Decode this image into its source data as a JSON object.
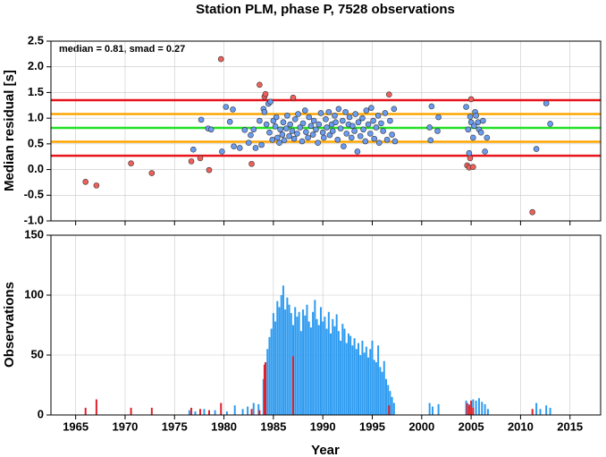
{
  "chart_data": [
    {
      "type": "scatter",
      "title": "Station PLM, phase P, 7528 observations",
      "y_label": "Median residual [s]",
      "annotation": "median = 0.81, smad = 0.27",
      "xlim": [
        1962.5,
        2018.1
      ],
      "xticks": [
        1965,
        1970,
        1975,
        1980,
        1985,
        1990,
        1995,
        2000,
        2005,
        2010,
        2015
      ],
      "ylim": [
        -1.0,
        2.5
      ],
      "yticks": [
        {
          "value": -1.0,
          "label": "-1.0"
        },
        -0.5,
        {
          "value": 0.0,
          "label": "0.0"
        },
        0.5,
        {
          "value": 1.0,
          "label": "1.0"
        },
        1.5,
        {
          "value": 2.0,
          "label": "2.0"
        },
        2.5
      ],
      "grid": true,
      "hlines": [
        {
          "value": 1.35,
          "color": "#e8141c"
        },
        {
          "value": 1.08,
          "color": "#ffa500"
        },
        {
          "value": 0.81,
          "color": "#22e022"
        },
        {
          "value": 0.54,
          "color": "#ffa500"
        },
        {
          "value": 0.27,
          "color": "#e8141c"
        }
      ],
      "series": [
        {
          "color": "#6b9cf0",
          "x": [
            1976.9,
            1977.7,
            1978.4,
            1978.7,
            1979.8,
            1980.2,
            1980.6,
            1980.9,
            1981.0,
            1981.6,
            1982.1,
            1982.5,
            1982.7,
            1983.0,
            1983.2,
            1983.6,
            1983.8,
            1984.0,
            1984.1,
            1984.3,
            1984.5,
            1984.6,
            1984.7,
            1984.9,
            1985.0,
            1985.2,
            1985.3,
            1985.4,
            1985.6,
            1985.7,
            1985.9,
            1986.0,
            1986.1,
            1986.3,
            1986.4,
            1986.6,
            1986.7,
            1986.9,
            1987.1,
            1987.2,
            1987.4,
            1987.5,
            1987.7,
            1987.9,
            1988.0,
            1988.2,
            1988.3,
            1988.5,
            1988.6,
            1988.8,
            1989.0,
            1989.1,
            1989.3,
            1989.5,
            1989.6,
            1989.8,
            1990.0,
            1990.1,
            1990.3,
            1990.4,
            1990.6,
            1990.7,
            1990.9,
            1991.0,
            1991.2,
            1991.3,
            1991.5,
            1991.6,
            1991.8,
            1992.0,
            1992.1,
            1992.3,
            1992.4,
            1992.6,
            1992.7,
            1992.9,
            1993.0,
            1993.2,
            1993.3,
            1993.5,
            1993.6,
            1993.8,
            1994.0,
            1994.1,
            1994.3,
            1994.4,
            1994.6,
            1994.8,
            1994.9,
            1995.1,
            1995.2,
            1995.4,
            1995.6,
            1995.7,
            1995.9,
            1996.1,
            1996.3,
            1996.5,
            1996.8,
            1997.0,
            1997.2,
            1997.3,
            2000.8,
            2000.9,
            2001.0,
            2001.6,
            2001.7,
            2004.5,
            2004.7,
            2004.8,
            2004.9,
            2005.0,
            2005.2,
            2005.3,
            2005.4,
            2005.5,
            2005.7,
            2005.8,
            2006.0,
            2006.2,
            2006.4,
            2006.6,
            2011.6,
            2012.6,
            2013.0
          ],
          "values": [
            0.39,
            0.97,
            0.8,
            0.78,
            0.35,
            1.22,
            0.93,
            1.17,
            0.45,
            0.42,
            0.77,
            0.52,
            0.67,
            0.78,
            0.42,
            0.95,
            0.48,
            1.18,
            1.12,
            0.88,
            1.28,
            0.72,
            1.32,
            0.58,
            0.95,
            0.84,
            1.02,
            0.62,
            0.52,
            0.78,
            0.68,
            0.92,
            0.57,
            0.8,
            1.05,
            0.65,
            0.88,
            0.75,
            0.6,
            0.98,
            0.7,
            1.08,
            0.82,
            0.55,
            0.9,
            1.15,
            0.73,
            0.62,
            1.02,
            0.85,
            0.68,
            0.95,
            0.78,
            0.52,
            0.88,
            1.1,
            0.72,
            0.62,
            0.98,
            0.82,
            1.12,
            0.67,
            0.88,
            0.75,
            1.05,
            0.92,
            0.58,
            1.18,
            0.8,
            0.95,
            0.45,
            1.12,
            0.7,
            0.88,
            1.02,
            0.62,
            0.85,
            0.75,
            1.08,
            0.35,
            0.92,
            0.65,
            1.0,
            0.78,
            0.55,
            1.15,
            0.88,
            0.7,
            1.2,
            0.95,
            0.6,
            0.82,
            1.05,
            0.52,
            0.9,
            0.75,
            1.1,
            0.58,
            0.95,
            0.68,
            1.18,
            0.55,
            0.82,
            0.57,
            1.23,
            0.75,
            1.02,
            1.22,
            0.78,
            0.32,
            1.03,
            0.92,
            0.62,
            0.85,
            1.12,
            1.05,
            0.92,
            0.78,
            0.72,
            0.95,
            0.35,
            0.62,
            0.4,
            1.29,
            0.89
          ]
        },
        {
          "color": "#f0605a",
          "x": [
            1966.0,
            1967.1,
            1970.6,
            1972.7,
            1976.7,
            1977.6,
            1978.5,
            1979.7,
            1982.8,
            1983.6,
            1984.1,
            1984.2,
            1987.0,
            1996.7,
            2004.6,
            2004.8,
            2004.9,
            2005.0,
            2005.2,
            2011.2
          ],
          "values": [
            -0.24,
            -0.31,
            0.12,
            -0.07,
            0.16,
            0.22,
            -0.01,
            2.15,
            0.11,
            1.65,
            1.42,
            1.47,
            1.4,
            1.46,
            0.08,
            0.04,
            0.22,
            1.37,
            0.05,
            -0.83
          ]
        }
      ]
    },
    {
      "type": "bar",
      "y_label": "Observations",
      "x_label": "Year",
      "xlim": [
        1962.5,
        2018.1
      ],
      "xticks": [
        1965,
        1970,
        1975,
        1980,
        1985,
        1990,
        1995,
        2000,
        2005,
        2010,
        2015
      ],
      "ylim": [
        0,
        150
      ],
      "yticks": [
        0,
        50,
        100,
        150
      ],
      "grid": true,
      "series": [
        {
          "color": "#2e9bf0",
          "x": [
            1976.5,
            1977.1,
            1978.0,
            1979.1,
            1980.3,
            1981.1,
            1981.9,
            1982.4,
            1983.0,
            1983.5,
            1984.0,
            1984.2,
            1984.4,
            1984.6,
            1984.8,
            1985.0,
            1985.2,
            1985.4,
            1985.6,
            1985.8,
            1986.0,
            1986.2,
            1986.4,
            1986.6,
            1986.8,
            1987.0,
            1987.2,
            1987.4,
            1987.6,
            1987.8,
            1988.0,
            1988.2,
            1988.4,
            1988.6,
            1988.8,
            1989.0,
            1989.2,
            1989.4,
            1989.6,
            1989.8,
            1990.0,
            1990.2,
            1990.4,
            1990.6,
            1990.8,
            1991.0,
            1991.2,
            1991.4,
            1991.6,
            1991.8,
            1992.0,
            1992.2,
            1992.4,
            1992.6,
            1992.8,
            1993.0,
            1993.2,
            1993.4,
            1993.6,
            1993.8,
            1994.0,
            1994.2,
            1994.4,
            1994.6,
            1994.8,
            1995.0,
            1995.2,
            1995.4,
            1995.6,
            1995.8,
            1996.0,
            1996.2,
            1996.4,
            1996.6,
            1996.8,
            1997.0,
            1997.2,
            2000.8,
            2001.1,
            2001.7,
            2004.5,
            2004.8,
            2005.2,
            2005.5,
            2005.8,
            2006.1,
            2006.4,
            2006.7,
            2011.6,
            2012.0,
            2012.6,
            2013.0
          ],
          "values": [
            4,
            3,
            5,
            4,
            3,
            8,
            5,
            7,
            10,
            9,
            30,
            38,
            55,
            65,
            72,
            85,
            78,
            95,
            90,
            100,
            108,
            88,
            98,
            92,
            85,
            75,
            90,
            82,
            86,
            70,
            88,
            83,
            92,
            78,
            73,
            86,
            96,
            80,
            75,
            90,
            78,
            82,
            72,
            86,
            68,
            80,
            74,
            84,
            70,
            62,
            76,
            72,
            60,
            68,
            66,
            58,
            64,
            55,
            60,
            50,
            62,
            52,
            57,
            48,
            55,
            62,
            46,
            44,
            58,
            40,
            36,
            45,
            30,
            25,
            20,
            15,
            10,
            10,
            7,
            9,
            12,
            9,
            13,
            12,
            14,
            11,
            9,
            5,
            10,
            5,
            8,
            6
          ]
        },
        {
          "color": "#e0202a",
          "x": [
            1966.0,
            1967.1,
            1970.6,
            1972.7,
            1976.7,
            1977.6,
            1978.5,
            1979.7,
            1982.8,
            1983.6,
            1984.1,
            1984.2,
            1987.0,
            1996.7,
            2004.6,
            2004.8,
            2005.0,
            2005.2,
            2011.2
          ],
          "values": [
            6,
            13,
            6,
            6,
            6,
            5,
            4,
            10,
            5,
            4,
            42,
            44,
            49,
            8,
            10,
            8,
            12,
            6,
            5
          ]
        }
      ]
    }
  ]
}
